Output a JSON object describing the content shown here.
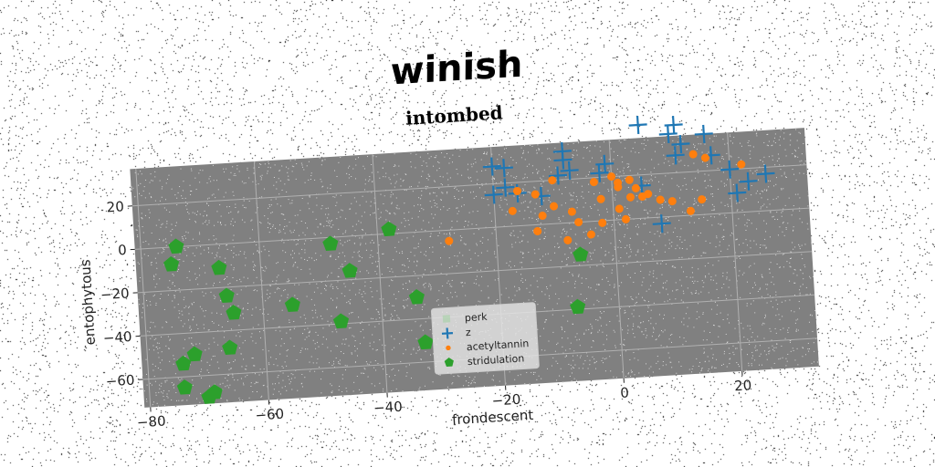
{
  "suptitle": "winish",
  "chart_data": {
    "type": "scatter",
    "title": "intombed",
    "xlabel": "frondescent",
    "ylabel": "entophytous",
    "xlim": [
      -81,
      33
    ],
    "ylim": [
      -73,
      37
    ],
    "xticks": [
      -80,
      -60,
      -40,
      -20,
      0,
      20
    ],
    "yticks": [
      -60,
      -40,
      -20,
      0,
      20
    ],
    "grid": true,
    "legend_position": "lower center",
    "legend": [
      "perk",
      "z",
      "acetyltannin",
      "stridulation"
    ],
    "series": [
      {
        "name": "perk",
        "marker": "none",
        "color": "#9cd19c",
        "points": []
      },
      {
        "name": "z",
        "marker": "plus",
        "color": "#1f77b4",
        "points": [
          [
            -20,
            28
          ],
          [
            -18,
            27
          ],
          [
            -18,
            18
          ],
          [
            -20,
            15
          ],
          [
            -16,
            15
          ],
          [
            -12,
            13
          ],
          [
            -8,
            29
          ],
          [
            -8,
            33
          ],
          [
            -7,
            24
          ],
          [
            -9,
            22
          ],
          [
            -1,
            26
          ],
          [
            -2,
            22
          ],
          [
            5,
            43
          ],
          [
            11,
            42
          ],
          [
            10,
            38
          ],
          [
            12,
            33
          ],
          [
            11,
            28
          ],
          [
            16,
            37
          ],
          [
            17,
            27
          ],
          [
            20,
            20
          ],
          [
            26,
            17
          ],
          [
            23,
            14
          ],
          [
            21,
            9
          ],
          [
            5,
            15
          ],
          [
            8,
            -3
          ]
        ]
      },
      {
        "name": "acetyltannin",
        "marker": "dot",
        "color": "#ff7f0e",
        "points": [
          [
            -28,
            -5
          ],
          [
            -17,
            7
          ],
          [
            -16,
            16
          ],
          [
            -13,
            14
          ],
          [
            -12,
            4
          ],
          [
            -13,
            -3
          ],
          [
            -10,
            20
          ],
          [
            -10,
            8
          ],
          [
            -8,
            -8
          ],
          [
            -7,
            5
          ],
          [
            -6,
            0
          ],
          [
            -4,
            -6
          ],
          [
            -3,
            18
          ],
          [
            -2,
            10
          ],
          [
            -2,
            -1
          ],
          [
            0,
            20
          ],
          [
            1,
            15
          ],
          [
            1,
            5
          ],
          [
            2,
            0
          ],
          [
            3,
            10
          ],
          [
            3,
            18
          ],
          [
            5,
            10
          ],
          [
            4,
            14
          ],
          [
            6,
            11
          ],
          [
            8,
            8
          ],
          [
            10,
            7
          ],
          [
            13,
            2
          ],
          [
            14,
            28
          ],
          [
            16,
            26
          ],
          [
            15,
            7
          ],
          [
            22,
            22
          ],
          [
            1,
            17
          ]
        ]
      },
      {
        "name": "stridulation",
        "marker": "pentagon",
        "color": "#2ca02c",
        "points": [
          [
            -74,
            0
          ],
          [
            -75,
            -8
          ],
          [
            -67,
            -11
          ],
          [
            -66,
            -24
          ],
          [
            -65,
            -32
          ],
          [
            -66,
            -48
          ],
          [
            -72,
            -50
          ],
          [
            -74,
            -54
          ],
          [
            -74,
            -65
          ],
          [
            -69,
            -68
          ],
          [
            -70,
            -70
          ],
          [
            -55,
            -30
          ],
          [
            -45,
            -16
          ],
          [
            -47,
            -39
          ],
          [
            -48,
            -3
          ],
          [
            -38,
            2
          ],
          [
            -34,
            -30
          ],
          [
            -33,
            -51
          ],
          [
            -6,
            -15
          ],
          [
            -7,
            -39
          ]
        ]
      }
    ]
  }
}
